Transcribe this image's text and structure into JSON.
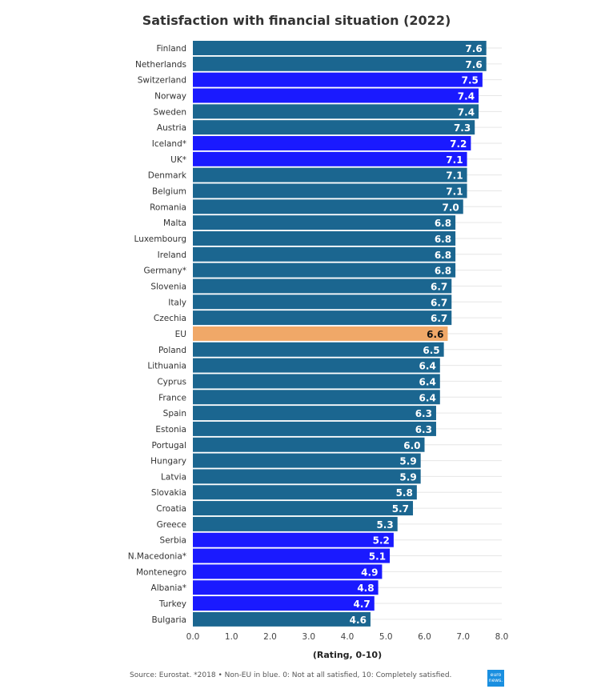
{
  "chart_data": {
    "type": "bar",
    "orientation": "horizontal",
    "title": "Satisfaction with financial situation (2022)",
    "xlabel": "(Rating, 0-10)",
    "xlim": [
      0,
      8
    ],
    "xticks": [
      "0.0",
      "1.0",
      "2.0",
      "3.0",
      "4.0",
      "5.0",
      "6.0",
      "7.0",
      "8.0"
    ],
    "grid": true,
    "categories": [
      "Finland",
      "Netherlands",
      "Switzerland",
      "Norway",
      "Sweden",
      "Austria",
      "Iceland*",
      "UK*",
      "Denmark",
      "Belgium",
      "Romania",
      "Malta",
      "Luxembourg",
      "Ireland",
      "Germany*",
      "Slovenia",
      "Italy",
      "Czechia",
      "EU",
      "Poland",
      "Lithuania",
      "Cyprus",
      "France",
      "Spain",
      "Estonia",
      "Portugal",
      "Hungary",
      "Latvia",
      "Slovakia",
      "Croatia",
      "Greece",
      "Serbia",
      "N.Macedonia*",
      "Montenegro",
      "Albania*",
      "Turkey",
      "Bulgaria"
    ],
    "values": [
      7.6,
      7.6,
      7.5,
      7.4,
      7.4,
      7.3,
      7.2,
      7.1,
      7.1,
      7.1,
      7.0,
      6.8,
      6.8,
      6.8,
      6.8,
      6.7,
      6.7,
      6.7,
      6.6,
      6.5,
      6.4,
      6.4,
      6.4,
      6.3,
      6.3,
      6.0,
      5.9,
      5.9,
      5.8,
      5.7,
      5.3,
      5.2,
      5.1,
      4.9,
      4.8,
      4.7,
      4.6
    ],
    "groups": [
      "eu",
      "eu",
      "non-eu",
      "non-eu",
      "eu",
      "eu",
      "non-eu",
      "non-eu",
      "eu",
      "eu",
      "eu",
      "eu",
      "eu",
      "eu",
      "eu",
      "eu",
      "eu",
      "eu",
      "eu-average",
      "eu",
      "eu",
      "eu",
      "eu",
      "eu",
      "eu",
      "eu",
      "eu",
      "eu",
      "eu",
      "eu",
      "eu",
      "non-eu",
      "non-eu",
      "non-eu",
      "non-eu",
      "non-eu",
      "eu"
    ],
    "colors": {
      "eu": "#1b6690",
      "non-eu": "#1a1aff",
      "eu-average": "#f0a868"
    }
  },
  "footer": {
    "source": "Source: Eurostat. *2018 • Non-EU in blue. 0: Not at all satisfied, 10: Completely satisfied.",
    "logo": "euro news."
  }
}
